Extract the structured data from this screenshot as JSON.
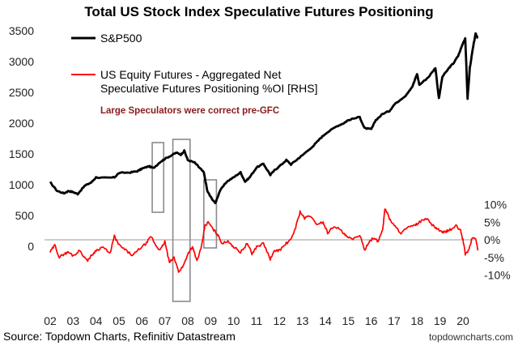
{
  "chart_data": {
    "type": "line",
    "title": "Total US Stock Index Speculative Futures Positioning",
    "annotation": "Large Speculators were correct pre-GFC",
    "source": "Source: Topdown Charts, Refinitiv Datastream",
    "brand": "topdowncharts.com",
    "x_ticks": [
      "02",
      "03",
      "04",
      "05",
      "06",
      "07",
      "08",
      "09",
      "10",
      "11",
      "12",
      "13",
      "14",
      "15",
      "16",
      "17",
      "18",
      "19",
      "20"
    ],
    "y_left_ticks": [
      "0",
      "500",
      "1000",
      "1500",
      "2000",
      "2500",
      "3000",
      "3500"
    ],
    "y_right_ticks": [
      "-10%",
      "-5%",
      "0%",
      "5%",
      "10%"
    ],
    "ylim_left": [
      0,
      3500
    ],
    "ylim_right": [
      -10,
      10
    ],
    "grid": false,
    "legend_position": "top-left",
    "series": [
      {
        "name": "S&P500",
        "axis": "left",
        "color": "#000000",
        "points": [
          [
            2002.0,
            1040
          ],
          [
            2002.3,
            900
          ],
          [
            2002.6,
            860
          ],
          [
            2002.8,
            900
          ],
          [
            2003.0,
            880
          ],
          [
            2003.2,
            850
          ],
          [
            2003.5,
            980
          ],
          [
            2003.8,
            1040
          ],
          [
            2004.0,
            1120
          ],
          [
            2004.5,
            1110
          ],
          [
            2004.8,
            1120
          ],
          [
            2005.0,
            1190
          ],
          [
            2005.5,
            1200
          ],
          [
            2005.8,
            1220
          ],
          [
            2006.0,
            1260
          ],
          [
            2006.3,
            1300
          ],
          [
            2006.5,
            1270
          ],
          [
            2006.8,
            1370
          ],
          [
            2007.0,
            1420
          ],
          [
            2007.3,
            1480
          ],
          [
            2007.5,
            1520
          ],
          [
            2007.7,
            1490
          ],
          [
            2007.85,
            1550
          ],
          [
            2008.0,
            1400
          ],
          [
            2008.3,
            1360
          ],
          [
            2008.5,
            1280
          ],
          [
            2008.7,
            1200
          ],
          [
            2008.85,
            900
          ],
          [
            2009.0,
            800
          ],
          [
            2009.2,
            700
          ],
          [
            2009.4,
            900
          ],
          [
            2009.7,
            1050
          ],
          [
            2010.0,
            1120
          ],
          [
            2010.3,
            1200
          ],
          [
            2010.5,
            1050
          ],
          [
            2010.7,
            1120
          ],
          [
            2011.0,
            1280
          ],
          [
            2011.3,
            1340
          ],
          [
            2011.6,
            1160
          ],
          [
            2011.8,
            1240
          ],
          [
            2012.0,
            1300
          ],
          [
            2012.3,
            1400
          ],
          [
            2012.5,
            1330
          ],
          [
            2012.8,
            1420
          ],
          [
            2013.0,
            1480
          ],
          [
            2013.5,
            1640
          ],
          [
            2013.8,
            1760
          ],
          [
            2014.0,
            1830
          ],
          [
            2014.5,
            1950
          ],
          [
            2014.8,
            2000
          ],
          [
            2015.0,
            2050
          ],
          [
            2015.5,
            2100
          ],
          [
            2015.7,
            1920
          ],
          [
            2016.0,
            1900
          ],
          [
            2016.2,
            2050
          ],
          [
            2016.5,
            2150
          ],
          [
            2016.8,
            2200
          ],
          [
            2017.0,
            2300
          ],
          [
            2017.5,
            2450
          ],
          [
            2017.8,
            2600
          ],
          [
            2018.0,
            2800
          ],
          [
            2018.1,
            2620
          ],
          [
            2018.5,
            2750
          ],
          [
            2018.8,
            2900
          ],
          [
            2018.95,
            2400
          ],
          [
            2019.1,
            2750
          ],
          [
            2019.4,
            2900
          ],
          [
            2019.6,
            2980
          ],
          [
            2019.8,
            3100
          ],
          [
            2020.0,
            3300
          ],
          [
            2020.1,
            3380
          ],
          [
            2020.2,
            2400
          ],
          [
            2020.3,
            2900
          ],
          [
            2020.45,
            3250
          ],
          [
            2020.55,
            3450
          ],
          [
            2020.65,
            3380
          ]
        ]
      },
      {
        "name": "US Equity Futures - Aggregated Net Speculative Futures Positioning %OI [RHS]",
        "axis": "right",
        "color": "#ff0000",
        "points": [
          [
            2002.0,
            -3.5
          ],
          [
            2002.2,
            -1.5
          ],
          [
            2002.4,
            -5.0
          ],
          [
            2002.6,
            -4.0
          ],
          [
            2002.8,
            -3.5
          ],
          [
            2003.0,
            -4.5
          ],
          [
            2003.3,
            -3.0
          ],
          [
            2003.6,
            -6.0
          ],
          [
            2003.8,
            -4.5
          ],
          [
            2004.0,
            -3.0
          ],
          [
            2004.3,
            -2.0
          ],
          [
            2004.6,
            -4.0
          ],
          [
            2004.8,
            1.0
          ],
          [
            2005.0,
            -1.5
          ],
          [
            2005.3,
            -3.0
          ],
          [
            2005.6,
            -4.5
          ],
          [
            2005.9,
            -2.5
          ],
          [
            2006.2,
            -1.0
          ],
          [
            2006.4,
            1.0
          ],
          [
            2006.6,
            -1.5
          ],
          [
            2006.8,
            -3.0
          ],
          [
            2007.0,
            -0.5
          ],
          [
            2007.2,
            -6.5
          ],
          [
            2007.4,
            -5.0
          ],
          [
            2007.6,
            -9.0
          ],
          [
            2007.8,
            -7.5
          ],
          [
            2008.0,
            -4.0
          ],
          [
            2008.2,
            -2.0
          ],
          [
            2008.4,
            -6.0
          ],
          [
            2008.6,
            -2.0
          ],
          [
            2008.75,
            4.0
          ],
          [
            2008.9,
            5.0
          ],
          [
            2009.1,
            3.0
          ],
          [
            2009.3,
            1.5
          ],
          [
            2009.5,
            -1.0
          ],
          [
            2009.8,
            -0.5
          ],
          [
            2010.0,
            -2.0
          ],
          [
            2010.3,
            -3.5
          ],
          [
            2010.6,
            -1.0
          ],
          [
            2010.8,
            -4.0
          ],
          [
            2011.0,
            -2.0
          ],
          [
            2011.3,
            -1.0
          ],
          [
            2011.6,
            -5.5
          ],
          [
            2011.8,
            -3.0
          ],
          [
            2012.0,
            -3.0
          ],
          [
            2012.3,
            -1.0
          ],
          [
            2012.5,
            0.0
          ],
          [
            2012.7,
            3.5
          ],
          [
            2012.9,
            8.0
          ],
          [
            2013.1,
            6.0
          ],
          [
            2013.3,
            7.0
          ],
          [
            2013.6,
            4.5
          ],
          [
            2013.9,
            5.0
          ],
          [
            2014.1,
            2.0
          ],
          [
            2014.4,
            4.0
          ],
          [
            2014.7,
            2.5
          ],
          [
            2014.9,
            1.0
          ],
          [
            2015.2,
            0.0
          ],
          [
            2015.5,
            1.5
          ],
          [
            2015.7,
            -3.0
          ],
          [
            2015.9,
            -0.5
          ],
          [
            2016.1,
            0.5
          ],
          [
            2016.3,
            -0.5
          ],
          [
            2016.5,
            3.0
          ],
          [
            2016.6,
            9.0
          ],
          [
            2016.8,
            6.0
          ],
          [
            2017.0,
            4.0
          ],
          [
            2017.3,
            2.0
          ],
          [
            2017.6,
            3.5
          ],
          [
            2017.9,
            4.0
          ],
          [
            2018.1,
            5.0
          ],
          [
            2018.4,
            6.0
          ],
          [
            2018.7,
            4.0
          ],
          [
            2018.9,
            3.0
          ],
          [
            2019.1,
            2.0
          ],
          [
            2019.3,
            2.5
          ],
          [
            2019.5,
            3.0
          ],
          [
            2019.7,
            4.0
          ],
          [
            2019.9,
            2.5
          ],
          [
            2020.0,
            0.0
          ],
          [
            2020.1,
            -4.0
          ],
          [
            2020.25,
            -3.0
          ],
          [
            2020.4,
            0.5
          ],
          [
            2020.55,
            0.5
          ],
          [
            2020.65,
            -3.0
          ]
        ]
      }
    ],
    "highlight_periods": [
      [
        2006.45,
        2006.95
      ],
      [
        2007.35,
        2008.1
      ],
      [
        2008.7,
        2009.25
      ]
    ]
  }
}
